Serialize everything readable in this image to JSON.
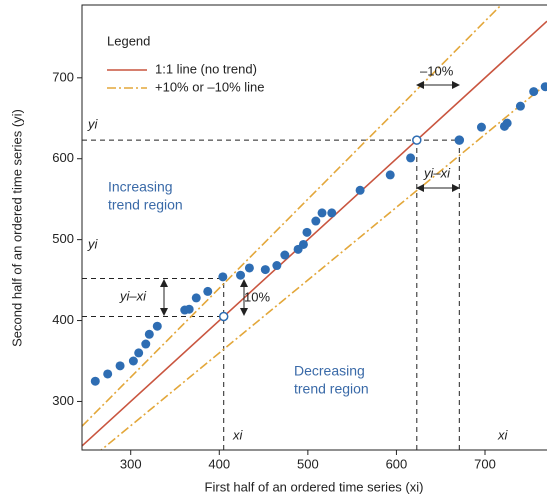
{
  "chart_data": {
    "type": "scatter",
    "x_label": "First half of an ordered time series (xi)",
    "y_label": "Second half of an ordered time series (yi)",
    "legend_title": "Legend",
    "xlim": [
      245,
      770
    ],
    "ylim": [
      240,
      790
    ],
    "xticks": [
      300,
      400,
      500,
      600,
      700
    ],
    "yticks": [
      300,
      400,
      500,
      600,
      700
    ],
    "color": "#2e6db3",
    "x": [
      260,
      274,
      288,
      303,
      309,
      317,
      321,
      330,
      361,
      366,
      374,
      387,
      404,
      424,
      434,
      452,
      465,
      474,
      489,
      495,
      499,
      509,
      516,
      527,
      559,
      593,
      616,
      696,
      722,
      725,
      740,
      755,
      768
    ],
    "values": [
      325,
      334,
      344,
      350,
      360,
      371,
      383,
      393,
      413,
      414,
      428,
      436,
      454,
      456,
      465,
      463,
      468,
      481,
      488,
      494,
      509,
      523,
      533,
      533,
      561,
      580,
      601,
      639,
      640,
      644,
      665,
      683,
      689
    ],
    "reference_lines": [
      {
        "name": "1:1 line (no trend)",
        "color": "#c9553f",
        "dash": false,
        "x": [
          245,
          770
        ],
        "values": [
          245,
          770
        ]
      },
      {
        "name": "+10% or –10% line",
        "color": "#e3a73a",
        "dash": true,
        "x": [
          245,
          770
        ],
        "values": [
          269.5,
          847
        ]
      },
      {
        "color": "#e3a73a",
        "dash": true,
        "x": [
          245,
          770
        ],
        "values": [
          220.5,
          693
        ]
      }
    ],
    "highlight_points": {
      "x": [
        405,
        623,
        671
      ],
      "values": [
        405,
        623,
        623
      ]
    },
    "guides": [
      [
        245,
        623,
        671,
        623
      ],
      [
        245,
        452,
        405,
        452
      ],
      [
        245,
        405,
        405,
        405
      ],
      [
        405,
        240,
        405,
        452
      ],
      [
        623,
        240,
        623,
        623
      ],
      [
        671,
        240,
        671,
        623
      ]
    ],
    "annotations": {
      "increasing": [
        "Increasing",
        "trend region"
      ],
      "decreasing": [
        "Decreasing",
        "trend region"
      ],
      "yi_top": "yi",
      "yi_mid": "yi",
      "xi_left": "xi",
      "xi_right": "xi",
      "minus10": "–10%",
      "plus10": "10%",
      "diff_right": "yi–xi",
      "diff_left": "yi–xi"
    }
  }
}
